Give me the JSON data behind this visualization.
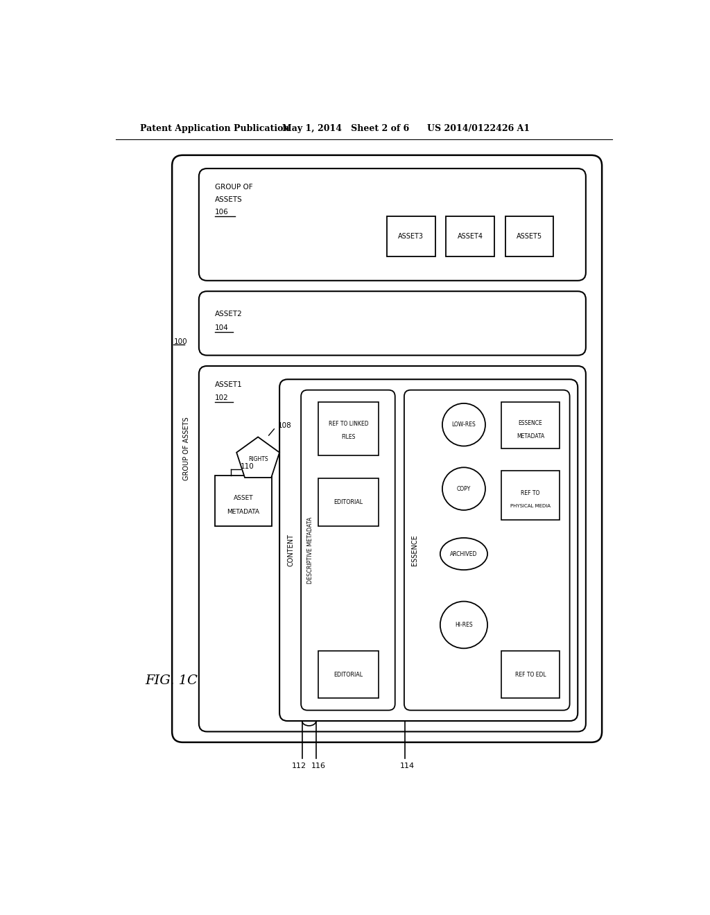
{
  "bg_color": "#ffffff",
  "header_text": "Patent Application Publication",
  "header_date": "May 1, 2014   Sheet 2 of 6",
  "header_patent": "US 2014/0122426 A1",
  "fig_label": "FIG. 1C",
  "label_100": "100",
  "label_102": "102",
  "label_104": "104",
  "label_106": "106",
  "label_108": "108",
  "label_110": "110",
  "label_112": "112",
  "label_114": "114",
  "label_116": "116"
}
